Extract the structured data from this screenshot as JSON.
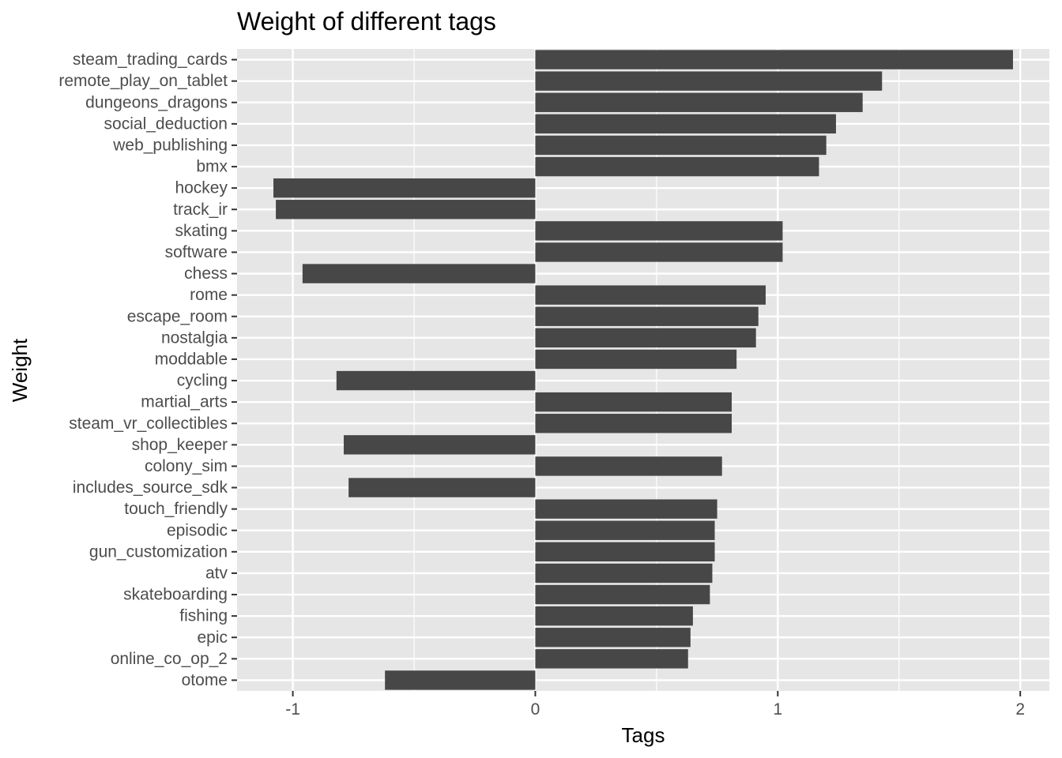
{
  "chart_data": {
    "type": "bar",
    "orientation": "horizontal",
    "title": "Weight of different tags",
    "xlabel": "Tags",
    "ylabel": "Weight",
    "xlim": [
      -1.23,
      2.12
    ],
    "x_ticks": [
      -1,
      0,
      1,
      2
    ],
    "x_tick_labels": [
      "-1",
      "0",
      "1",
      "2"
    ],
    "grid": true,
    "legend": "none",
    "bar_color": "#474747",
    "panel_color": "#e6e6e6",
    "categories": [
      "steam_trading_cards",
      "remote_play_on_tablet",
      "dungeons_dragons",
      "social_deduction",
      "web_publishing",
      "bmx",
      "hockey",
      "track_ir",
      "skating",
      "software",
      "chess",
      "rome",
      "escape_room",
      "nostalgia",
      "moddable",
      "cycling",
      "martial_arts",
      "steam_vr_collectibles",
      "shop_keeper",
      "colony_sim",
      "includes_source_sdk",
      "touch_friendly",
      "episodic",
      "gun_customization",
      "atv",
      "skateboarding",
      "fishing",
      "epic",
      "online_co_op_2",
      "otome"
    ],
    "values": [
      1.97,
      1.43,
      1.35,
      1.24,
      1.2,
      1.17,
      -1.08,
      -1.07,
      1.02,
      1.02,
      -0.96,
      0.95,
      0.92,
      0.91,
      0.83,
      -0.82,
      0.81,
      0.81,
      -0.79,
      0.77,
      -0.77,
      0.75,
      0.74,
      0.74,
      0.73,
      0.72,
      0.65,
      0.64,
      0.63,
      -0.62
    ]
  }
}
